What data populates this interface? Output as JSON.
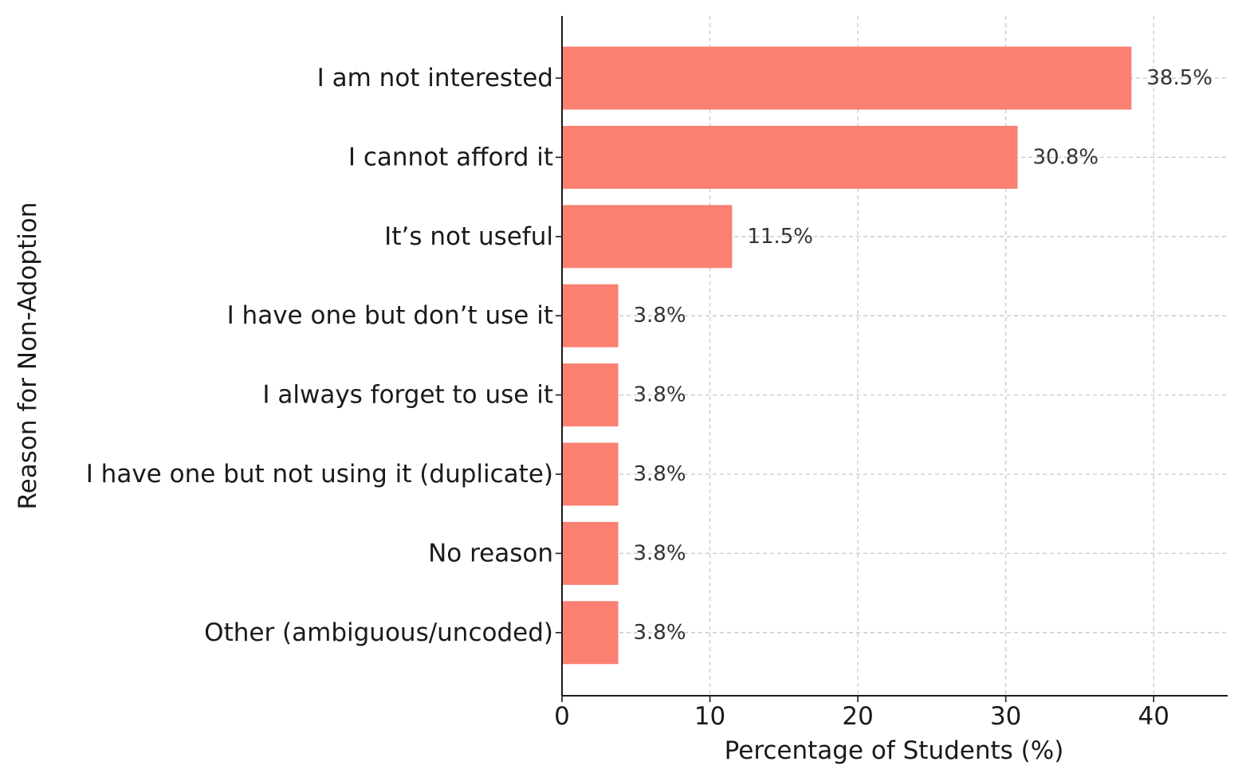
{
  "chart_data": {
    "type": "bar",
    "orientation": "horizontal",
    "categories": [
      "I am not interested",
      "I cannot afford it",
      "It’s not useful",
      "I have one but don’t use it",
      "I always forget to use it",
      "I have one but not using it (duplicate)",
      "No reason",
      "Other (ambiguous/uncoded)"
    ],
    "values": [
      38.5,
      30.8,
      11.5,
      3.8,
      3.8,
      3.8,
      3.8,
      3.8
    ],
    "data_labels": [
      "38.5%",
      "30.8%",
      "11.5%",
      "3.8%",
      "3.8%",
      "3.8%",
      "3.8%",
      "3.8%"
    ],
    "xlabel": "Percentage of Students (%)",
    "ylabel": "Reason for Non-Adoption",
    "xlim": [
      0,
      45
    ],
    "xticks": [
      0,
      10,
      20,
      30,
      40
    ],
    "grid": true,
    "bar_color": "#fa8072",
    "grid_color": "#c8c8c8",
    "axis_color": "#1a1a1a"
  }
}
